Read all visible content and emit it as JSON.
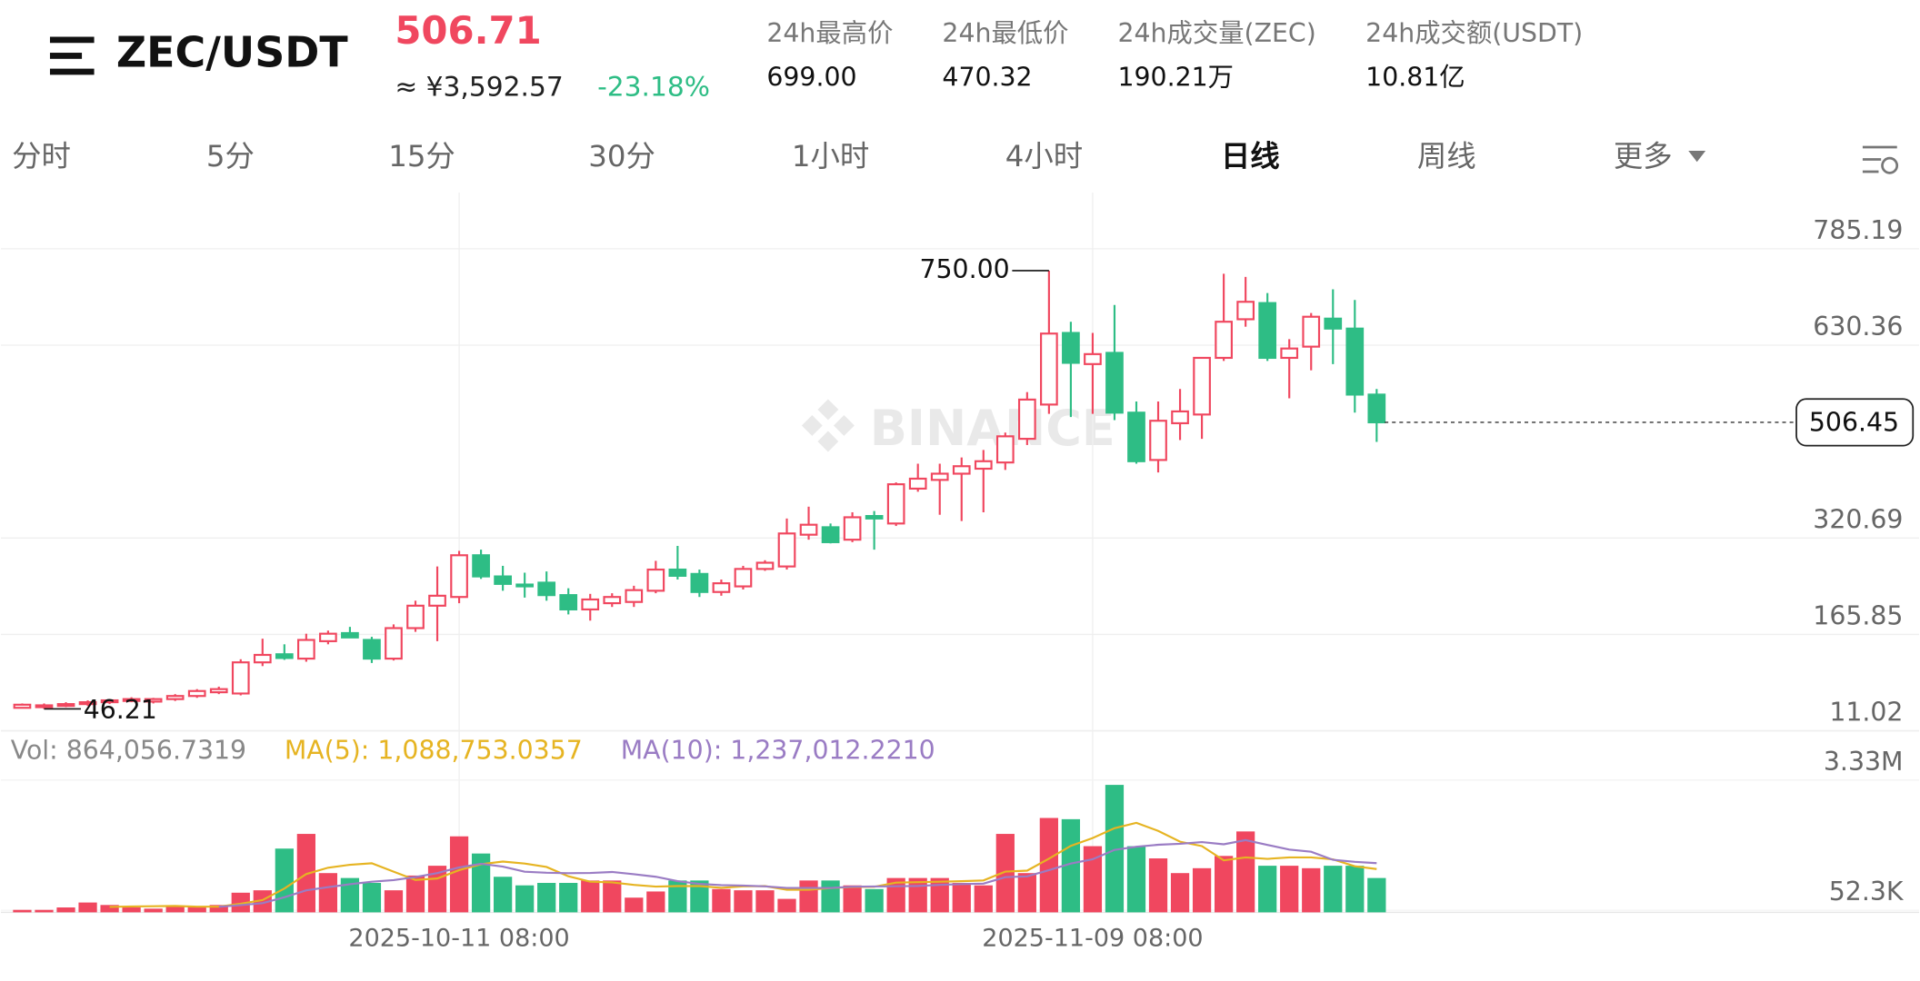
{
  "header": {
    "symbol": "ZEC/USDT",
    "price": "506.71",
    "price_cny": "≈ ¥3,592.57",
    "change": "-23.18%",
    "stats": [
      {
        "label": "24h最高价",
        "value": "699.00"
      },
      {
        "label": "24h最低价",
        "value": "470.32"
      },
      {
        "label": "24h成交量(ZEC)",
        "value": "190.21万"
      },
      {
        "label": "24h成交额(USDT)",
        "value": "10.81亿"
      }
    ]
  },
  "tabs": [
    "分时",
    "5分",
    "15分",
    "30分",
    "1小时",
    "4小时",
    "日线",
    "周线",
    "更多"
  ],
  "active_tab": 6,
  "chart_data": [
    {
      "type": "candlestick",
      "watermark": "BINANCE",
      "up_color": "#f0475f",
      "down_color": "#2ebd85",
      "categories": [
        null,
        null,
        null,
        null,
        null,
        null,
        null,
        null,
        null,
        null,
        null,
        null,
        null,
        null,
        null,
        null,
        null,
        null,
        null,
        null,
        "2025-10-11 08:00",
        null,
        null,
        null,
        null,
        null,
        null,
        null,
        null,
        null,
        null,
        null,
        null,
        null,
        null,
        null,
        null,
        null,
        null,
        null,
        null,
        null,
        null,
        null,
        null,
        null,
        null,
        null,
        null,
        "2025-11-09 08:00",
        null,
        null,
        null,
        null,
        null,
        null,
        null,
        null,
        null,
        null,
        null,
        null,
        null
      ],
      "open": [
        48,
        50,
        52,
        54,
        57,
        60,
        58,
        62,
        67,
        73,
        71,
        121,
        134,
        127,
        155,
        168,
        157,
        127,
        176,
        212,
        226,
        293,
        259,
        246,
        249,
        229,
        206,
        216,
        218,
        236,
        270,
        263,
        234,
        243,
        271,
        275,
        326,
        338,
        318,
        356,
        344,
        400,
        414,
        424,
        432,
        442,
        480,
        535,
        650,
        600,
        618,
        522,
        446,
        505,
        519,
        610,
        672,
        698,
        610,
        628,
        673,
        657,
        551
      ],
      "high": [
        55,
        55,
        57,
        60,
        62,
        65,
        64,
        70,
        78,
        82,
        126,
        159,
        150,
        167,
        172,
        178,
        162,
        182,
        220,
        275,
        300,
        302,
        276,
        265,
        267,
        240,
        231,
        232,
        244,
        284,
        308,
        270,
        254,
        276,
        285,
        352,
        371,
        344,
        362,
        364,
        410,
        440,
        440,
        450,
        462,
        490,
        555,
        750,
        668,
        650,
        695,
        540,
        540,
        560,
        610,
        745,
        740,
        714,
        640,
        682,
        720,
        703,
        560
      ],
      "low": [
        47,
        46.21,
        49,
        51,
        54,
        57,
        55,
        59,
        64,
        70,
        68,
        115,
        125,
        122,
        150,
        160,
        120,
        124,
        170,
        155,
        216,
        255,
        236,
        225,
        220,
        198,
        188,
        210,
        210,
        232,
        254,
        226,
        228,
        238,
        268,
        270,
        318,
        312,
        314,
        302,
        340,
        395,
        358,
        348,
        362,
        430,
        470,
        520,
        515,
        520,
        510,
        440,
        426,
        478,
        480,
        605,
        660,
        605,
        545,
        590,
        600,
        522,
        475
      ],
      "close": [
        53,
        52,
        54,
        57,
        60,
        62,
        62,
        67,
        75,
        78,
        121,
        133,
        128,
        157,
        167,
        161,
        127,
        176,
        212,
        228,
        293,
        259,
        247,
        244,
        229,
        206,
        222,
        226,
        237,
        270,
        260,
        234,
        248,
        271,
        281,
        328,
        342,
        314,
        354,
        352,
        407,
        416,
        424,
        436,
        444,
        484,
        543,
        649,
        602,
        616,
        522,
        444,
        509,
        524,
        610,
        668,
        700,
        610,
        625,
        676,
        657,
        551,
        506.45
      ],
      "ylim": [
        11.02,
        875.5
      ],
      "yticks": [
        11.02,
        165.85,
        320.69,
        630.36,
        785.19
      ],
      "grid": true,
      "annotations": [
        {
          "label": "750.00",
          "value": 750,
          "index": 47,
          "side": "left"
        },
        {
          "label": "46.21",
          "value": 46.21,
          "index": 1,
          "side": "right"
        }
      ],
      "last_price": {
        "label": "506.45",
        "value": 506.45
      }
    },
    {
      "type": "volume",
      "legend": [
        {
          "text": "Vol: 864,056.7319",
          "color": "#888888"
        },
        {
          "text": "MA(5): 1,088,753.0357",
          "color": "#e6b422"
        },
        {
          "text": "MA(10): 1,237,012.2210",
          "color": "#9a7cc4"
        }
      ],
      "values": [
        62000,
        62000,
        123000,
        247000,
        185000,
        123000,
        93000,
        154000,
        154000,
        185000,
        494000,
        555000,
        1605000,
        1975000,
        988000,
        864000,
        741000,
        555000,
        926000,
        1173000,
        1913000,
        1481000,
        895000,
        679000,
        741000,
        741000,
        802000,
        802000,
        370000,
        525000,
        802000,
        802000,
        586000,
        555000,
        555000,
        339000,
        802000,
        802000,
        679000,
        586000,
        864000,
        864000,
        864000,
        741000,
        679000,
        1975000,
        988000,
        2376000,
        2345000,
        1666000,
        3209000,
        1666000,
        1358000,
        988000,
        1111000,
        1420000,
        2037000,
        1173000,
        1173000,
        1111000,
        1173000,
        1173000,
        864056.7319
      ],
      "series": [
        {
          "name": "MA(5)",
          "color": "#e6b422",
          "values": [
            null,
            null,
            null,
            null,
            136000,
            148000,
            154000,
            160000,
            142000,
            142000,
            216000,
            309000,
            599000,
            963000,
            1123000,
            1197000,
            1234000,
            1025000,
            815000,
            852000,
            1062000,
            1210000,
            1278000,
            1228000,
            1142000,
            907000,
            772000,
            753000,
            691000,
            648000,
            660000,
            660000,
            617000,
            654000,
            660000,
            568000,
            568000,
            611000,
            636000,
            642000,
            747000,
            759000,
            772000,
            784000,
            802000,
            1025000,
            1049000,
            1352000,
            1673000,
            1870000,
            2117000,
            2253000,
            2049000,
            1778000,
            1666000,
            1308000,
            1383000,
            1345000,
            1383000,
            1383000,
            1333000,
            1160000,
            1088753.0357
          ]
        },
        {
          "name": "MA(10)",
          "color": "#9a7cc4",
          "values": [
            null,
            null,
            null,
            null,
            null,
            null,
            null,
            null,
            null,
            139000,
            182000,
            231000,
            380000,
            552000,
            633000,
            707000,
            772000,
            812000,
            889000,
            988000,
            1129000,
            1222000,
            1151000,
            1021000,
            997000,
            984000,
            991000,
            1015000,
            960000,
            895000,
            784000,
            716000,
            685000,
            673000,
            654000,
            614000,
            614000,
            614000,
            645000,
            651000,
            657000,
            663000,
            691000,
            710000,
            722000,
            886000,
            904000,
            1062000,
            1228000,
            1336000,
            1571000,
            1651000,
            1700000,
            1725000,
            1768000,
            1713000,
            1818000,
            1697000,
            1580000,
            1524000,
            1321000,
            1271000,
            1237012.221
          ]
        }
      ],
      "ylim": [
        0,
        3520000
      ],
      "yticks": [
        {
          "value": 3330000,
          "label": "3.33M"
        },
        {
          "value": 52300,
          "label": "52.3K"
        }
      ]
    }
  ]
}
